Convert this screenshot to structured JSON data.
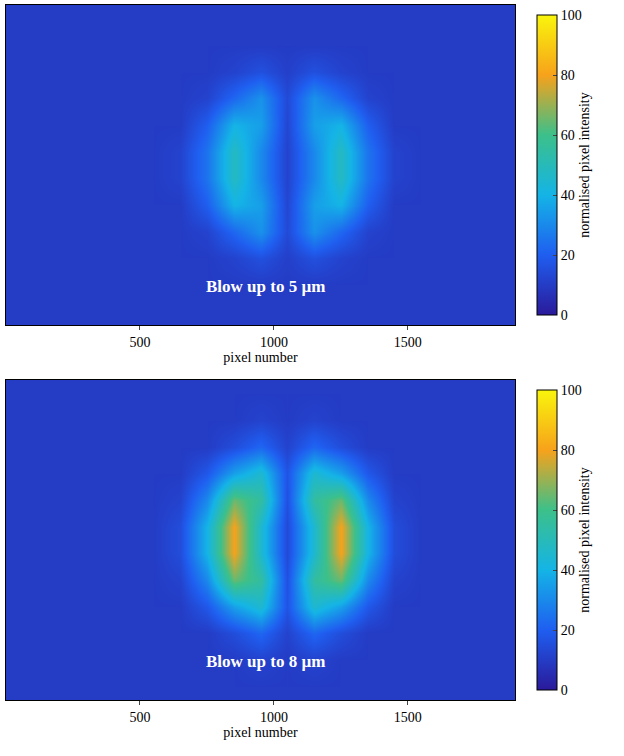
{
  "chart_data": [
    {
      "type": "heatmap",
      "annotation": "Blow up to 5 µm",
      "xlabel": "pixel number",
      "tick_labels": "x",
      "xlim": [
        0,
        1900
      ],
      "ylim": [
        0,
        1200
      ],
      "xticks": [
        500,
        1000,
        1500
      ],
      "x": [
        50,
        150,
        250,
        350,
        450,
        550,
        650,
        750,
        850,
        950,
        1050,
        1150,
        1250,
        1350,
        1450,
        1550,
        1650,
        1750,
        1850
      ],
      "y": [
        50,
        150,
        250,
        350,
        450,
        550,
        650,
        750,
        850,
        950,
        1050,
        1150
      ],
      "cells": [
        [
          10,
          10,
          10,
          10,
          10,
          10,
          10,
          10,
          10,
          10,
          10,
          10,
          10,
          10,
          10,
          10,
          10,
          10,
          10
        ],
        [
          10,
          10,
          10,
          10,
          10,
          10,
          10,
          10,
          10,
          10,
          10,
          10,
          10,
          10,
          10,
          10,
          10,
          10,
          10
        ],
        [
          10,
          10,
          10,
          10,
          10,
          10,
          10,
          10,
          12,
          16,
          11,
          16,
          12,
          10,
          10,
          10,
          10,
          10,
          10
        ],
        [
          10,
          10,
          10,
          10,
          10,
          10,
          10,
          12,
          22,
          32,
          14,
          32,
          22,
          12,
          10,
          10,
          10,
          10,
          10
        ],
        [
          10,
          10,
          10,
          10,
          10,
          10,
          10,
          20,
          40,
          35,
          13,
          35,
          40,
          20,
          10,
          10,
          10,
          10,
          10
        ],
        [
          10,
          10,
          10,
          10,
          10,
          10,
          12,
          25,
          48,
          30,
          12,
          30,
          48,
          25,
          12,
          10,
          10,
          10,
          10
        ],
        [
          10,
          10,
          10,
          10,
          10,
          10,
          12,
          25,
          48,
          30,
          12,
          30,
          48,
          25,
          12,
          10,
          10,
          10,
          10
        ],
        [
          10,
          10,
          10,
          10,
          10,
          10,
          10,
          20,
          40,
          35,
          13,
          35,
          40,
          20,
          10,
          10,
          10,
          10,
          10
        ],
        [
          10,
          10,
          10,
          10,
          10,
          10,
          10,
          12,
          22,
          32,
          14,
          32,
          22,
          12,
          10,
          10,
          10,
          10,
          10
        ],
        [
          10,
          10,
          10,
          10,
          10,
          10,
          10,
          10,
          12,
          16,
          11,
          16,
          12,
          10,
          10,
          10,
          10,
          10,
          10
        ],
        [
          10,
          10,
          10,
          10,
          10,
          10,
          10,
          10,
          10,
          10,
          10,
          10,
          10,
          10,
          10,
          10,
          10,
          10,
          10
        ],
        [
          10,
          10,
          10,
          10,
          10,
          10,
          10,
          10,
          10,
          10,
          10,
          10,
          10,
          10,
          10,
          10,
          10,
          10,
          10
        ]
      ],
      "zlim": [
        0,
        100
      ],
      "zticks": [
        0,
        20,
        40,
        60,
        80,
        100
      ],
      "colorbar_label": "normalised pixel intensity"
    },
    {
      "type": "heatmap",
      "annotation": "Blow up to 8 µm",
      "xlabel": "pixel number",
      "tick_labels": "x",
      "xlim": [
        0,
        1900
      ],
      "ylim": [
        0,
        1200
      ],
      "xticks": [
        500,
        1000,
        1500
      ],
      "x": [
        50,
        150,
        250,
        350,
        450,
        550,
        650,
        750,
        850,
        950,
        1050,
        1150,
        1250,
        1350,
        1450,
        1550,
        1650,
        1750,
        1850
      ],
      "y": [
        50,
        150,
        250,
        350,
        450,
        550,
        650,
        750,
        850,
        950,
        1050,
        1150
      ],
      "cells": [
        [
          10,
          10,
          10,
          10,
          10,
          10,
          10,
          10,
          10,
          10,
          10,
          10,
          10,
          10,
          10,
          10,
          10,
          10,
          10
        ],
        [
          10,
          10,
          10,
          10,
          10,
          10,
          10,
          10,
          10,
          12,
          10,
          12,
          10,
          10,
          10,
          10,
          10,
          10,
          10
        ],
        [
          10,
          10,
          10,
          10,
          10,
          10,
          10,
          10,
          15,
          22,
          12,
          22,
          15,
          10,
          10,
          10,
          10,
          10,
          10
        ],
        [
          10,
          10,
          10,
          10,
          10,
          10,
          10,
          18,
          35,
          45,
          17,
          45,
          35,
          18,
          10,
          10,
          10,
          10,
          10
        ],
        [
          10,
          10,
          10,
          10,
          10,
          10,
          12,
          30,
          65,
          55,
          16,
          55,
          65,
          30,
          12,
          10,
          10,
          10,
          10
        ],
        [
          10,
          10,
          10,
          10,
          10,
          10,
          15,
          40,
          80,
          45,
          14,
          45,
          80,
          40,
          15,
          10,
          10,
          10,
          10
        ],
        [
          10,
          10,
          10,
          10,
          10,
          10,
          15,
          40,
          80,
          45,
          14,
          45,
          80,
          40,
          15,
          10,
          10,
          10,
          10
        ],
        [
          10,
          10,
          10,
          10,
          10,
          10,
          12,
          30,
          65,
          55,
          16,
          55,
          65,
          30,
          12,
          10,
          10,
          10,
          10
        ],
        [
          10,
          10,
          10,
          10,
          10,
          10,
          10,
          18,
          35,
          45,
          17,
          45,
          35,
          18,
          10,
          10,
          10,
          10,
          10
        ],
        [
          10,
          10,
          10,
          10,
          10,
          10,
          10,
          10,
          15,
          22,
          12,
          22,
          15,
          10,
          10,
          10,
          10,
          10,
          10
        ],
        [
          10,
          10,
          10,
          10,
          10,
          10,
          10,
          10,
          10,
          12,
          10,
          12,
          10,
          10,
          10,
          10,
          10,
          10,
          10
        ],
        [
          10,
          10,
          10,
          10,
          10,
          10,
          10,
          10,
          10,
          10,
          10,
          10,
          10,
          10,
          10,
          10,
          10,
          10,
          10
        ]
      ],
      "zlim": [
        0,
        100
      ],
      "zticks": [
        0,
        20,
        40,
        60,
        80,
        100
      ],
      "colorbar_label": "normalised pixel intensity"
    }
  ]
}
